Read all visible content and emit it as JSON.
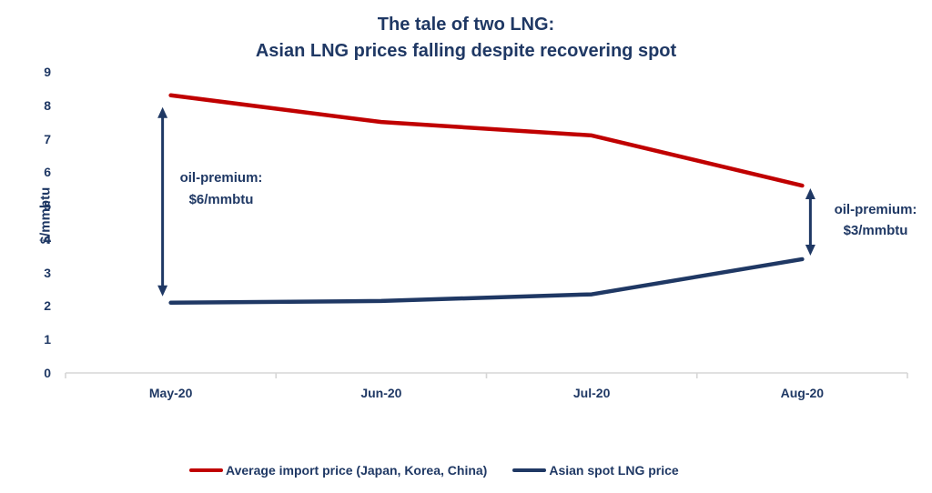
{
  "title": {
    "line1": "The tale of two LNG:",
    "line2": "Asian LNG prices falling despite recovering spot"
  },
  "y_axis_label": "$/mmbtu",
  "annotations": {
    "left": {
      "line1": "oil-premium:",
      "line2": "$6/mmbtu"
    },
    "right": {
      "line1": "oil-premium:",
      "line2": "$3/mmbtu"
    }
  },
  "legend": {
    "items": [
      {
        "label": "Average import price (Japan, Korea, China)",
        "color": "#c00000"
      },
      {
        "label": "Asian spot LNG price",
        "color": "#1f3864"
      }
    ]
  },
  "colors": {
    "navy": "#1f3864",
    "red": "#c00000",
    "axis": "#d6d6d6",
    "background": "#ffffff"
  },
  "chart_data": {
    "type": "line",
    "title": "The tale of two LNG: Asian LNG prices falling despite recovering spot",
    "categories": [
      "May-20",
      "Jun-20",
      "Jul-20",
      "Aug-20"
    ],
    "series": [
      {
        "name": "Average import price (Japan, Korea, China)",
        "color": "#c00000",
        "values": [
          8.3,
          7.5,
          7.1,
          5.6
        ]
      },
      {
        "name": "Asian spot LNG price",
        "color": "#1f3864",
        "values": [
          2.1,
          2.15,
          2.35,
          3.4
        ]
      }
    ],
    "xlabel": "",
    "ylabel": "$/mmbtu",
    "ylim": [
      0,
      9
    ],
    "yticks": [
      0,
      1,
      2,
      3,
      4,
      5,
      6,
      7,
      8,
      9
    ],
    "grid": false,
    "legend_position": "bottom",
    "annotations": [
      {
        "text": "oil-premium: $6/mmbtu",
        "anchor_category": "May-20",
        "between_series": true
      },
      {
        "text": "oil-premium: $3/mmbtu",
        "anchor_category": "Aug-20",
        "between_series": true
      }
    ]
  }
}
